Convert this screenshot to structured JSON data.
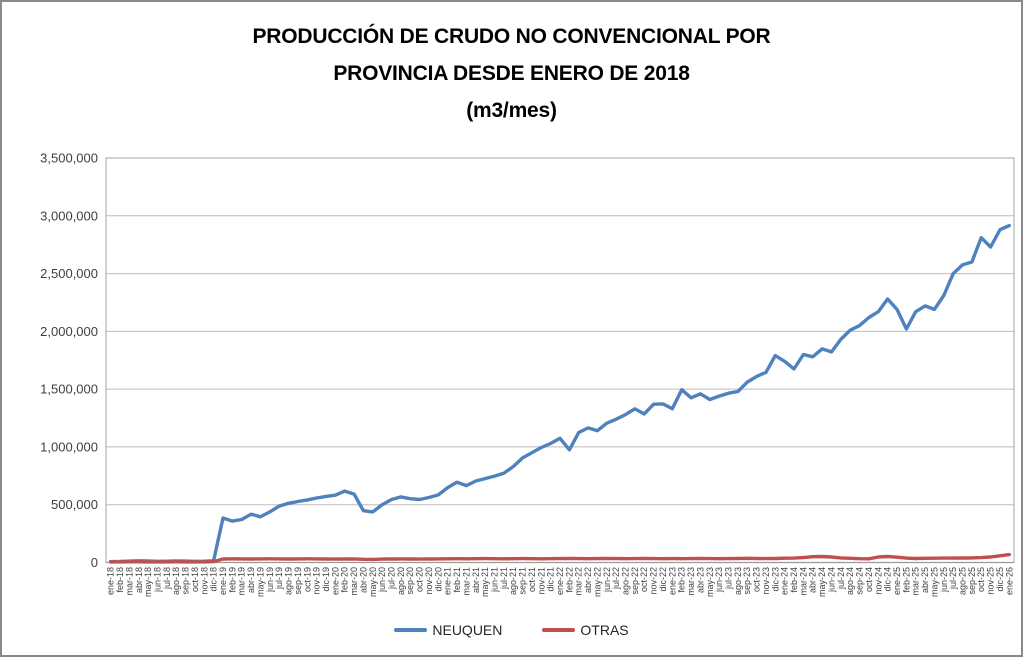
{
  "chart_data": {
    "type": "line",
    "title_lines": [
      "PRODUCCIÓN DE CRUDO NO CONVENCIONAL POR",
      "PROVINCIA DESDE ENERO DE 2018",
      "(m3/mes)"
    ],
    "xlabel": "",
    "ylabel": "",
    "ylim": [
      0,
      3500000
    ],
    "ytick_step": 500000,
    "ytick_labels": [
      "0",
      "500,000",
      "1,000,000",
      "1,500,000",
      "2,000,000",
      "2,500,000",
      "3,000,000",
      "3,500,000"
    ],
    "grid": true,
    "legend_position": "bottom",
    "categories": [
      "ene-18",
      "feb-18",
      "mar-18",
      "abr-18",
      "may-18",
      "jun-18",
      "jul-18",
      "ago-18",
      "sep-18",
      "oct-18",
      "nov-18",
      "dic-18",
      "ene-19",
      "feb-19",
      "mar-19",
      "abr-19",
      "may-19",
      "jun-19",
      "jul-19",
      "ago-19",
      "sep-19",
      "oct-19",
      "nov-19",
      "dic-19",
      "ene-20",
      "feb-20",
      "mar-20",
      "abr-20",
      "may-20",
      "jun-20",
      "jul-20",
      "ago-20",
      "sep-20",
      "oct-20",
      "nov-20",
      "dic-20",
      "ene-21",
      "feb-21",
      "mar-21",
      "abr-21",
      "may-21",
      "jun-21",
      "jul-21",
      "ago-21",
      "sep-21",
      "oct-21",
      "nov-21",
      "dic-21",
      "ene-22",
      "feb-22",
      "mar-22",
      "abr-22",
      "may-22",
      "jun-22",
      "jul-22",
      "ago-22",
      "sep-22",
      "oct-22",
      "nov-22",
      "dic-22",
      "ene-23",
      "feb-23",
      "mar-23",
      "abr-23",
      "may-23",
      "jun-23",
      "jul-23",
      "ago-23",
      "sep-23",
      "oct-23",
      "nov-23",
      "dic-23",
      "ene-24",
      "feb-24",
      "mar-24",
      "abr-24",
      "may-24",
      "jun-24",
      "jul-24",
      "ago-24",
      "sep-24",
      "oct-24",
      "nov-24",
      "dic-24",
      "ene-25",
      "feb-25",
      "mar-25",
      "abr-25",
      "may-25",
      "jun-25",
      "jul-25",
      "ago-25",
      "sep-25",
      "oct-25",
      "nov-25",
      "dic-25",
      "ene-26"
    ],
    "series": [
      {
        "name": "NEUQUEN",
        "color": "#4F81BD",
        "values": [
          8000,
          9000,
          12000,
          15000,
          13000,
          10000,
          11000,
          13000,
          12000,
          10000,
          11000,
          15000,
          385000,
          358000,
          372000,
          418000,
          395000,
          438000,
          488000,
          512000,
          528000,
          542000,
          558000,
          572000,
          582000,
          618000,
          592000,
          448000,
          438000,
          500000,
          545000,
          568000,
          552000,
          545000,
          562000,
          585000,
          648000,
          695000,
          665000,
          705000,
          726000,
          748000,
          772000,
          830000,
          905000,
          950000,
          995000,
          1030000,
          1075000,
          975000,
          1125000,
          1165000,
          1140000,
          1205000,
          1240000,
          1280000,
          1330000,
          1285000,
          1370000,
          1372000,
          1330000,
          1495000,
          1425000,
          1460000,
          1410000,
          1440000,
          1465000,
          1480000,
          1560000,
          1610000,
          1645000,
          1790000,
          1740000,
          1675000,
          1800000,
          1780000,
          1848000,
          1822000,
          1930000,
          2010000,
          2050000,
          2120000,
          2170000,
          2280000,
          2190000,
          2020000,
          2170000,
          2220000,
          2190000,
          2310000,
          2500000,
          2575000,
          2600000,
          2810000,
          2730000,
          2880000,
          2915000
        ]
      },
      {
        "name": "OTRAS",
        "color": "#C0504D",
        "values": [
          5000,
          5000,
          6000,
          6000,
          5000,
          5000,
          5000,
          6000,
          5000,
          5000,
          5000,
          8000,
          30000,
          32000,
          31000,
          30000,
          31000,
          32000,
          31000,
          30000,
          31000,
          32000,
          31000,
          30000,
          29000,
          30000,
          31000,
          28000,
          27000,
          29000,
          30000,
          31000,
          30000,
          29000,
          30000,
          31000,
          32000,
          33000,
          32000,
          33000,
          34000,
          33000,
          32000,
          33000,
          34000,
          33000,
          32000,
          33000,
          34000,
          35000,
          34000,
          33000,
          34000,
          35000,
          34000,
          33000,
          34000,
          35000,
          34000,
          33000,
          34000,
          33000,
          34000,
          35000,
          34000,
          33000,
          34000,
          35000,
          36000,
          35000,
          34000,
          35000,
          37000,
          38000,
          42000,
          50000,
          52000,
          48000,
          40000,
          36000,
          33000,
          32000,
          48000,
          52000,
          46000,
          38000,
          35000,
          36000,
          37000,
          38000,
          38000,
          39000,
          40000,
          42000,
          48000,
          58000,
          68000
        ]
      }
    ]
  }
}
